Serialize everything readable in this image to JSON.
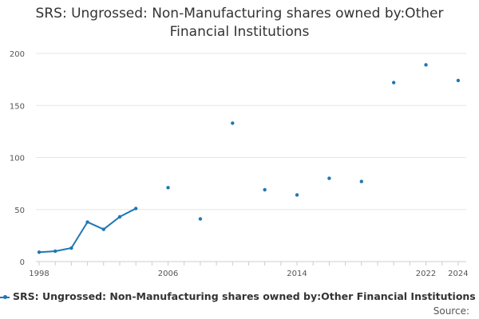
{
  "chart_data": {
    "type": "line",
    "title_line1": "SRS: Ungrossed: Non-Manufacturing shares owned by:Other",
    "title_line2": "Financial Institutions",
    "xlabel": "",
    "ylabel": "",
    "xlim": [
      1997.8,
      2024.5
    ],
    "ylim": [
      0,
      200
    ],
    "y_ticks": [
      0,
      50,
      100,
      150,
      200
    ],
    "x_ticks": [
      1998,
      2006,
      2014,
      2022,
      2024
    ],
    "series": [
      {
        "name": "SRS: Ungrossed: Non-Manufacturing shares owned by:Other Financial Institutions",
        "color": "#1f77b4",
        "x": [
          1998,
          1999,
          2000,
          2001,
          2002,
          2003,
          2004,
          2006,
          2008,
          2010,
          2012,
          2014,
          2016,
          2018,
          2020,
          2022,
          2024
        ],
        "values": [
          9,
          10,
          13,
          38,
          31,
          43,
          51,
          71,
          41,
          133,
          69,
          64,
          80,
          77,
          172,
          189,
          174
        ]
      }
    ],
    "grid": true,
    "legend_position": "bottom-left"
  },
  "legend": {
    "label": "SRS: Ungrossed: Non-Manufacturing shares owned by:Other Financial Institutions"
  },
  "footer": {
    "source_label": "Source:"
  }
}
